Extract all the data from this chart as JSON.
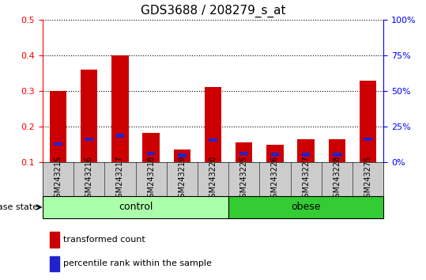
{
  "title": "GDS3688 / 208279_s_at",
  "samples": [
    "GSM243215",
    "GSM243216",
    "GSM243217",
    "GSM243218",
    "GSM243219",
    "GSM243220",
    "GSM243225",
    "GSM243226",
    "GSM243227",
    "GSM243228",
    "GSM243275"
  ],
  "red_values": [
    0.3,
    0.36,
    0.4,
    0.182,
    0.137,
    0.312,
    0.157,
    0.15,
    0.164,
    0.164,
    0.33
  ],
  "blue_values": [
    0.152,
    0.165,
    0.175,
    0.125,
    0.12,
    0.163,
    0.125,
    0.122,
    0.122,
    0.122,
    0.165
  ],
  "ylim": [
    0.1,
    0.5
  ],
  "yticks_left": [
    0.1,
    0.2,
    0.3,
    0.4,
    0.5
  ],
  "yticks_right": [
    0,
    25,
    50,
    75,
    100
  ],
  "bar_width": 0.55,
  "red_color": "#cc0000",
  "blue_color": "#2222cc",
  "groups": [
    {
      "label": "control",
      "start": 0,
      "end": 5,
      "color": "#aaffaa"
    },
    {
      "label": "obese",
      "start": 6,
      "end": 10,
      "color": "#33cc33"
    }
  ],
  "group_label": "disease state",
  "legend_red": "transformed count",
  "legend_blue": "percentile rank within the sample",
  "title_fontsize": 11,
  "tick_fontsize": 8,
  "sample_fontsize": 7,
  "group_fontsize": 9,
  "legend_fontsize": 8
}
